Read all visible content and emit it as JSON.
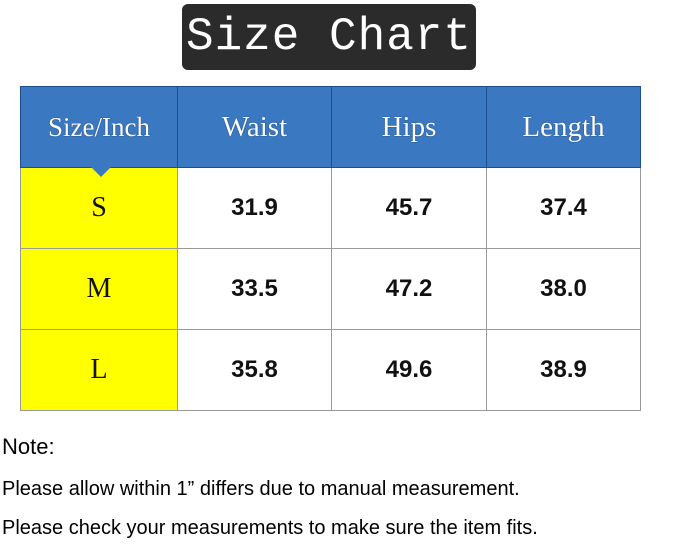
{
  "title": "Size Chart",
  "table": {
    "headers": [
      "Size/Inch",
      "Waist",
      "Hips",
      "Length"
    ],
    "rows": [
      [
        "S",
        "31.9",
        "45.7",
        "37.4"
      ],
      [
        "M",
        "33.5",
        "47.2",
        "38.0"
      ],
      [
        "L",
        "35.8",
        "49.6",
        "38.9"
      ]
    ]
  },
  "notes": {
    "heading": "Note:",
    "lines": [
      "Please allow within 1” differs due to manual measurement.",
      "Please check your measurements to make sure the item fits."
    ]
  },
  "colors": {
    "header": "#3a78c2",
    "size_column": "#ffff00",
    "title_bg": "#2b2b2b"
  }
}
